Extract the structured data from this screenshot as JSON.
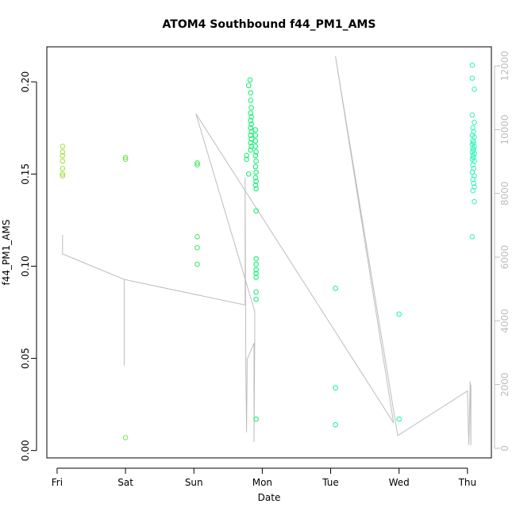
{
  "chart_data": {
    "type": "scatter",
    "title": "ATOM4 Southbound f44_PM1_AMS",
    "xlabel": "Date",
    "ylabel": "f44_PM1_AMS",
    "x_ticks": [
      "Fri",
      "Sat",
      "Sun",
      "Mon",
      "Tue",
      "Wed",
      "Thu"
    ],
    "x_tick_days": [
      0,
      1,
      2,
      3,
      4,
      5,
      6
    ],
    "xlim": [
      -0.15,
      6.35
    ],
    "ylim": [
      -0.004,
      0.219
    ],
    "y_ticks": [
      0.0,
      0.05,
      0.1,
      0.15,
      0.2
    ],
    "y_tick_labels": [
      "0.00",
      "0.05",
      "0.10",
      "0.15",
      "0.20"
    ],
    "y2lim": [
      -300,
      12600
    ],
    "y2_ticks": [
      0,
      2000,
      4000,
      6000,
      8000,
      10000,
      12000
    ],
    "y2_tick_labels": [
      "0",
      "2000",
      "4000",
      "6000",
      "8000",
      "10000",
      "12000"
    ],
    "grid": false,
    "colors": {
      "secondary_line": "#bdbdbd",
      "point_gradient": [
        "#a6e13a",
        "#00f070",
        "#2ef5b8"
      ]
    },
    "points": [
      {
        "x": 0.08,
        "y": 0.165
      },
      {
        "x": 0.08,
        "y": 0.162
      },
      {
        "x": 0.08,
        "y": 0.16
      },
      {
        "x": 0.08,
        "y": 0.157
      },
      {
        "x": 0.08,
        "y": 0.153
      },
      {
        "x": 0.08,
        "y": 0.15
      },
      {
        "x": 0.08,
        "y": 0.149
      },
      {
        "x": 1.0,
        "y": 0.159
      },
      {
        "x": 1.0,
        "y": 0.158
      },
      {
        "x": 1.0,
        "y": 0.007
      },
      {
        "x": 2.05,
        "y": 0.156
      },
      {
        "x": 2.05,
        "y": 0.155
      },
      {
        "x": 2.05,
        "y": 0.116
      },
      {
        "x": 2.05,
        "y": 0.11
      },
      {
        "x": 2.05,
        "y": 0.101
      },
      {
        "x": 2.77,
        "y": 0.16
      },
      {
        "x": 2.77,
        "y": 0.158
      },
      {
        "x": 2.8,
        "y": 0.198
      },
      {
        "x": 2.82,
        "y": 0.201
      },
      {
        "x": 2.83,
        "y": 0.194
      },
      {
        "x": 2.83,
        "y": 0.19
      },
      {
        "x": 2.84,
        "y": 0.186
      },
      {
        "x": 2.83,
        "y": 0.183
      },
      {
        "x": 2.84,
        "y": 0.181
      },
      {
        "x": 2.83,
        "y": 0.179
      },
      {
        "x": 2.84,
        "y": 0.177
      },
      {
        "x": 2.83,
        "y": 0.175
      },
      {
        "x": 2.84,
        "y": 0.173
      },
      {
        "x": 2.83,
        "y": 0.171
      },
      {
        "x": 2.84,
        "y": 0.169
      },
      {
        "x": 2.83,
        "y": 0.167
      },
      {
        "x": 2.84,
        "y": 0.165
      },
      {
        "x": 2.83,
        "y": 0.163
      },
      {
        "x": 2.8,
        "y": 0.15
      },
      {
        "x": 2.9,
        "y": 0.174
      },
      {
        "x": 2.9,
        "y": 0.171
      },
      {
        "x": 2.9,
        "y": 0.168
      },
      {
        "x": 2.9,
        "y": 0.165
      },
      {
        "x": 2.91,
        "y": 0.162
      },
      {
        "x": 2.9,
        "y": 0.16
      },
      {
        "x": 2.91,
        "y": 0.157
      },
      {
        "x": 2.9,
        "y": 0.154
      },
      {
        "x": 2.91,
        "y": 0.151
      },
      {
        "x": 2.9,
        "y": 0.148
      },
      {
        "x": 2.91,
        "y": 0.146
      },
      {
        "x": 2.9,
        "y": 0.144
      },
      {
        "x": 2.91,
        "y": 0.142
      },
      {
        "x": 2.91,
        "y": 0.13
      },
      {
        "x": 2.91,
        "y": 0.104
      },
      {
        "x": 2.91,
        "y": 0.101
      },
      {
        "x": 2.91,
        "y": 0.098
      },
      {
        "x": 2.91,
        "y": 0.096
      },
      {
        "x": 2.91,
        "y": 0.094
      },
      {
        "x": 2.91,
        "y": 0.086
      },
      {
        "x": 2.91,
        "y": 0.082
      },
      {
        "x": 2.91,
        "y": 0.017
      },
      {
        "x": 4.07,
        "y": 0.088
      },
      {
        "x": 4.07,
        "y": 0.034
      },
      {
        "x": 4.07,
        "y": 0.014
      },
      {
        "x": 5.0,
        "y": 0.074
      },
      {
        "x": 5.0,
        "y": 0.017
      },
      {
        "x": 6.07,
        "y": 0.209
      },
      {
        "x": 6.07,
        "y": 0.202
      },
      {
        "x": 6.1,
        "y": 0.196
      },
      {
        "x": 6.07,
        "y": 0.182
      },
      {
        "x": 6.1,
        "y": 0.178
      },
      {
        "x": 6.08,
        "y": 0.175
      },
      {
        "x": 6.09,
        "y": 0.173
      },
      {
        "x": 6.07,
        "y": 0.171
      },
      {
        "x": 6.1,
        "y": 0.17
      },
      {
        "x": 6.08,
        "y": 0.168
      },
      {
        "x": 6.09,
        "y": 0.167
      },
      {
        "x": 6.07,
        "y": 0.166
      },
      {
        "x": 6.1,
        "y": 0.165
      },
      {
        "x": 6.08,
        "y": 0.164
      },
      {
        "x": 6.09,
        "y": 0.163
      },
      {
        "x": 6.07,
        "y": 0.162
      },
      {
        "x": 6.1,
        "y": 0.161
      },
      {
        "x": 6.08,
        "y": 0.16
      },
      {
        "x": 6.09,
        "y": 0.159
      },
      {
        "x": 6.07,
        "y": 0.158
      },
      {
        "x": 6.1,
        "y": 0.157
      },
      {
        "x": 6.08,
        "y": 0.155
      },
      {
        "x": 6.09,
        "y": 0.153
      },
      {
        "x": 6.07,
        "y": 0.151
      },
      {
        "x": 6.1,
        "y": 0.149
      },
      {
        "x": 6.08,
        "y": 0.147
      },
      {
        "x": 6.09,
        "y": 0.145
      },
      {
        "x": 6.1,
        "y": 0.143
      },
      {
        "x": 6.08,
        "y": 0.141
      },
      {
        "x": 6.1,
        "y": 0.135
      },
      {
        "x": 6.07,
        "y": 0.116
      }
    ],
    "secondary_line": [
      {
        "x": 0.08,
        "y2": 6100
      },
      {
        "x": 0.08,
        "y2": 6700
      },
      {
        "x": 0.08,
        "y2": 6100
      },
      {
        "x": 0.98,
        "y2": 5300
      },
      {
        "x": 0.98,
        "y2": 2600
      },
      {
        "x": 0.98,
        "y2": 5300
      },
      {
        "x": 2.75,
        "y2": 4500
      },
      {
        "x": 2.75,
        "y2": 5000
      },
      {
        "x": 2.75,
        "y2": 8500
      },
      {
        "x": 2.76,
        "y2": 2400
      },
      {
        "x": 2.77,
        "y2": 500
      },
      {
        "x": 2.78,
        "y2": 2800
      },
      {
        "x": 2.88,
        "y2": 3300
      },
      {
        "x": 2.88,
        "y2": 200
      },
      {
        "x": 2.89,
        "y2": 3400
      },
      {
        "x": 2.89,
        "y2": 4300
      },
      {
        "x": 2.03,
        "y2": 10500
      },
      {
        "x": 4.92,
        "y2": 800
      },
      {
        "x": 4.07,
        "y2": 12300
      },
      {
        "x": 4.98,
        "y2": 400
      },
      {
        "x": 6.0,
        "y2": 1800
      },
      {
        "x": 6.02,
        "y2": 100
      },
      {
        "x": 6.04,
        "y2": 2100
      },
      {
        "x": 6.05,
        "y2": 100
      },
      {
        "x": 6.05,
        "y2": 2000
      }
    ]
  }
}
